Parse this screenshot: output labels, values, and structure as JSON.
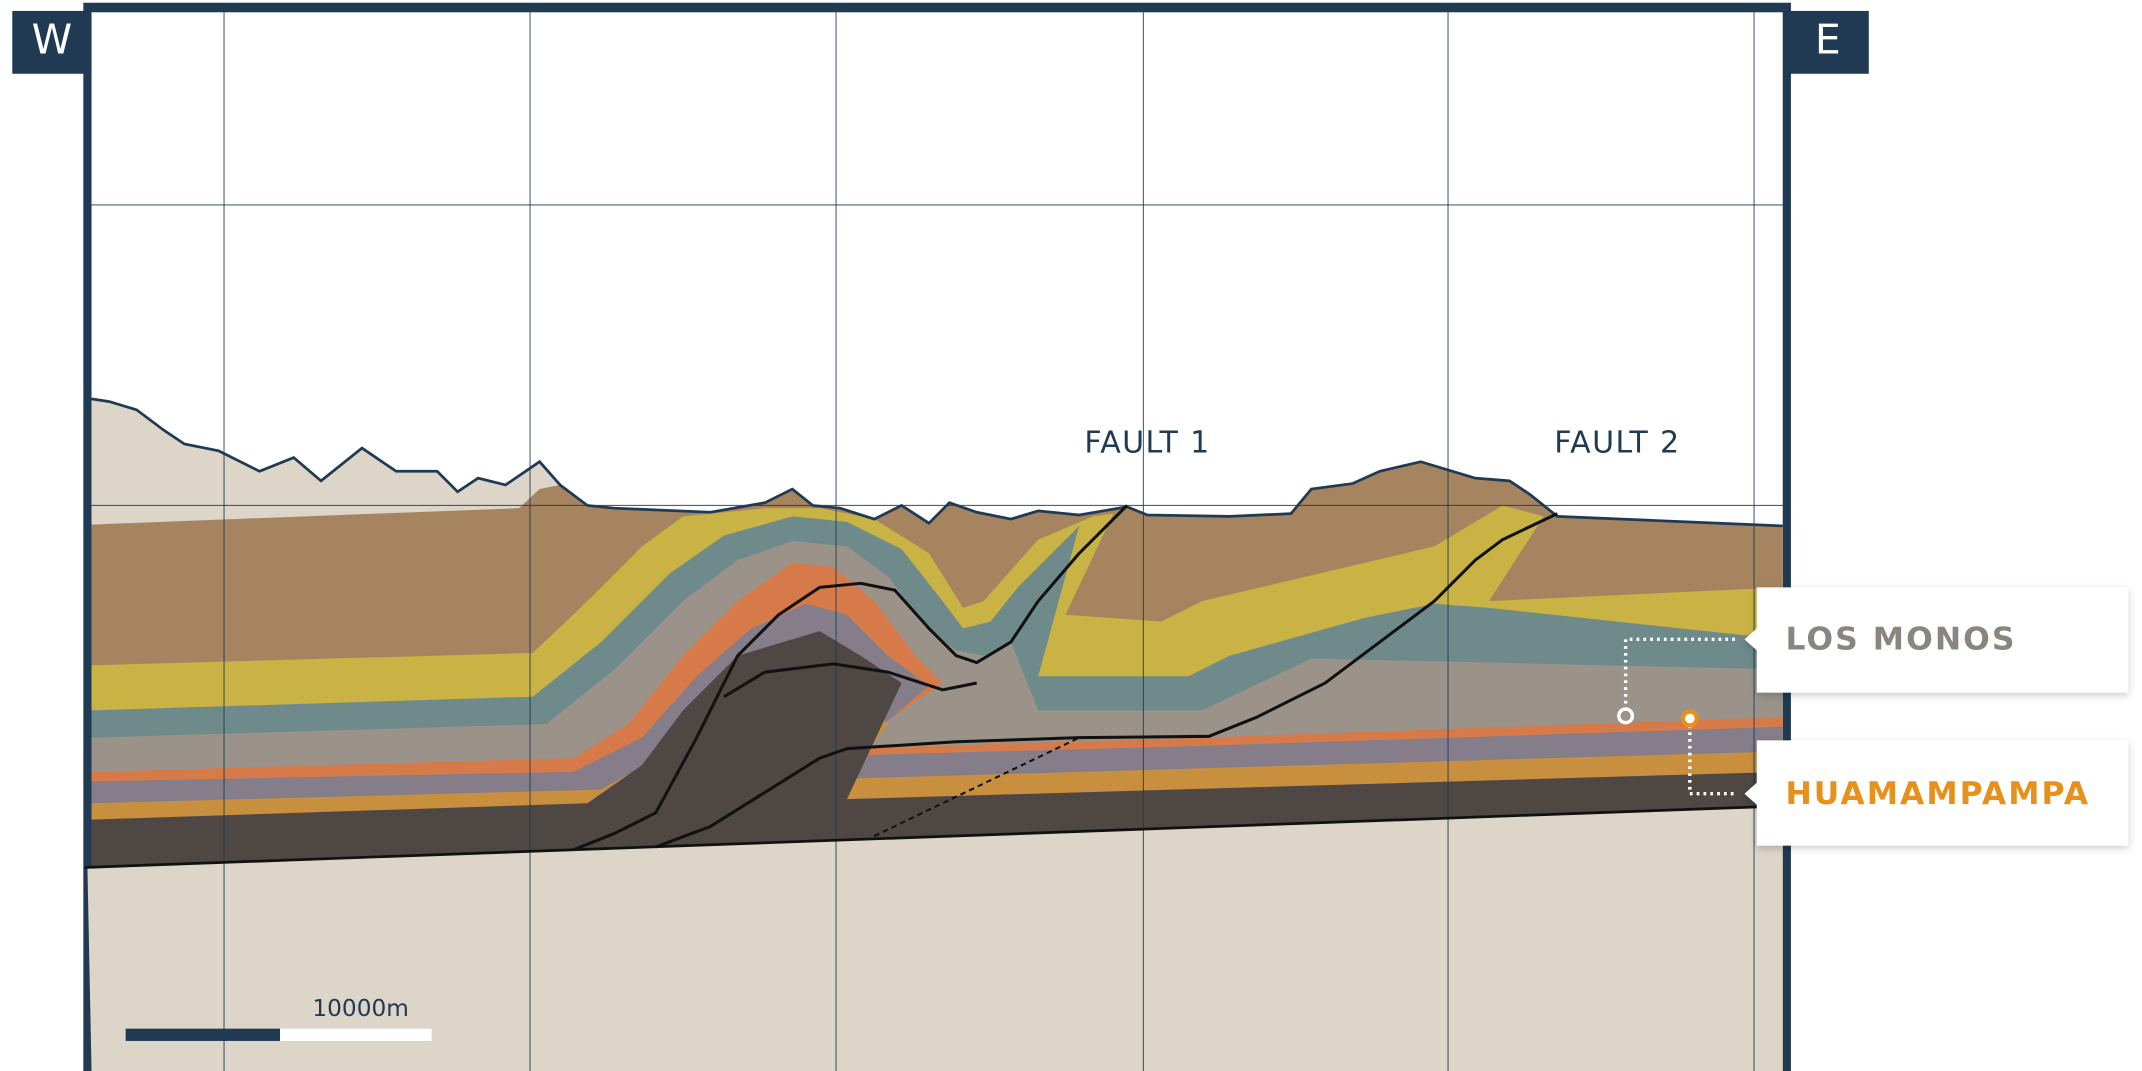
{
  "compass": {
    "west": "W",
    "east": "E"
  },
  "faults": [
    {
      "label": "FAULT 1"
    },
    {
      "label": "FAULT 2"
    }
  ],
  "callouts": [
    {
      "label": "LOS MONOS"
    },
    {
      "label": "HUAMAMPAMPA"
    }
  ],
  "scale_bar": {
    "label": "10000m"
  }
}
